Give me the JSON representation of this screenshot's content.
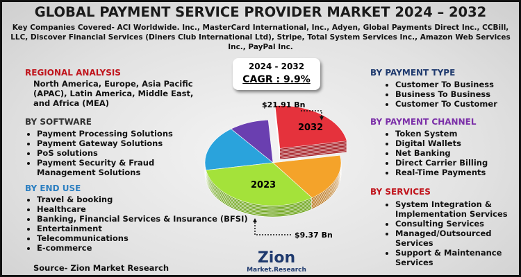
{
  "header": {
    "title": "GLOBAL PAYMENT SERVICE PROVIDER MARKET 2024 – 2032",
    "subtitle": "Key Companies Covered- ACI Worldwide. Inc., MasterCard International, Inc., Adyen, Global Payments Direct Inc., CCBill, LLC, Discover Financial Services (Diners Club International Ltd), Stripe, Total System Services Inc., Amazon Web Services Inc., PayPal Inc."
  },
  "cagr": {
    "period": "2024 - 2032",
    "label": "CAGR : 9.9%"
  },
  "pie": {
    "label_2032": "2032",
    "label_2023": "2023",
    "value_2032": "$21.91 Bn",
    "value_2023": "$9.37 Bn"
  },
  "left": {
    "regional": {
      "title": "REGIONAL ANALYSIS",
      "text": "North America, Europe, Asia Pacific (APAC), Latin America, Middle East, and Africa (MEA)"
    },
    "software": {
      "title": "BY SOFTWARE",
      "items": [
        "Payment Processing Solutions",
        "Payment Gateway Solutions",
        "PoS solutions",
        "Payment Security & Fraud Management Solutions"
      ]
    },
    "end_use": {
      "title": "BY END USE",
      "items": [
        "Travel & booking",
        "Healthcare",
        "Banking, Financial Services & Insurance (BFSI)",
        "Entertainment",
        "Telecommunications",
        "E-commerce"
      ]
    },
    "source": "Source- Zion Market Research"
  },
  "right": {
    "payment_type": {
      "title": "BY PAYMENT TYPE",
      "items": [
        "Customer To Business",
        "Business To Business",
        "Customer To Customer"
      ]
    },
    "payment_channel": {
      "title": "BY PAYMENT CHANNEL",
      "items": [
        "Token System",
        "Digital Wallets",
        "Net Banking",
        "Direct Carrier Billing",
        "Real-Time Payments"
      ]
    },
    "services": {
      "title": "BY SERVICES",
      "items": [
        "System Integration & Implementation Services",
        "Consulting Services",
        "Managed/Outsourced Services",
        "Support & Maintenance Services"
      ]
    }
  },
  "logo": {
    "name": "Zion",
    "tagline": "Market.Research"
  }
}
